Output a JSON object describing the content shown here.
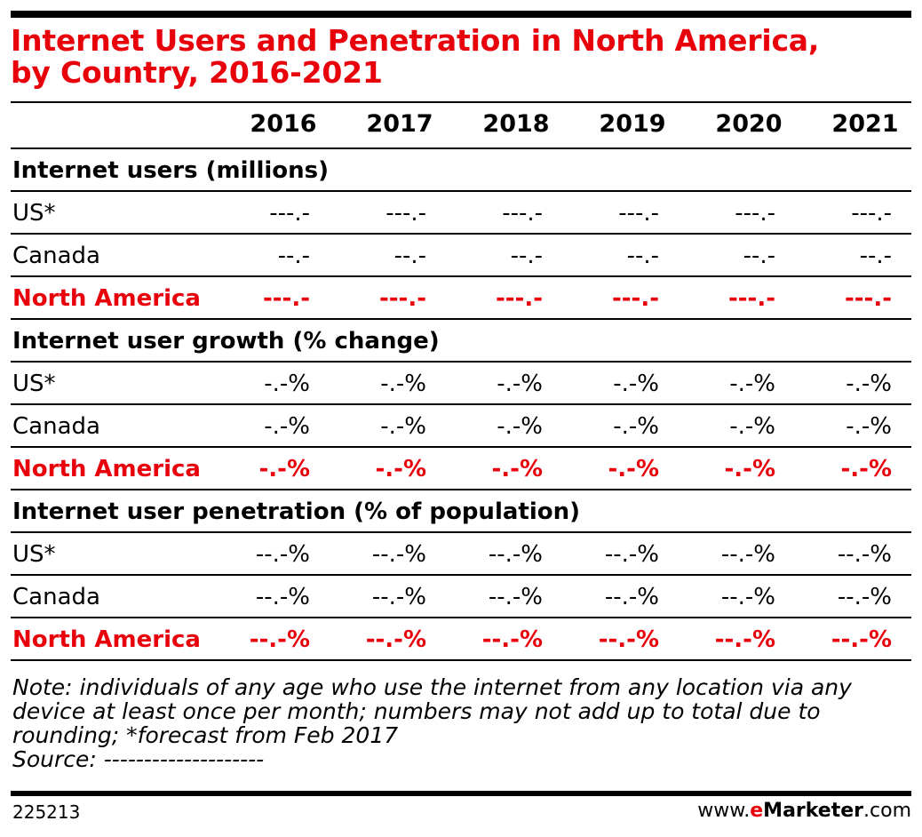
{
  "chart_data": {
    "type": "table",
    "title": "Internet Users and Penetration in North America, by Country, 2016-2021",
    "title_lines": [
      "Internet Users and Penetration in North America,",
      "by Country, 2016-2021"
    ],
    "years": [
      "2016",
      "2017",
      "2018",
      "2019",
      "2020",
      "2021"
    ],
    "sections": [
      {
        "heading": "Internet users (millions)",
        "rows": [
          {
            "label": "US*",
            "values": [
              "---.-",
              "---.-",
              "---.-",
              "---.-",
              "---.-",
              "---.-"
            ]
          },
          {
            "label": "Canada",
            "values": [
              "--.-",
              "--.-",
              "--.-",
              "--.-",
              "--.-",
              "--.-"
            ]
          },
          {
            "label": "North America",
            "values": [
              "---.-",
              "---.-",
              "---.-",
              "---.-",
              "---.-",
              "---.-"
            ]
          }
        ]
      },
      {
        "heading": "Internet user growth (% change)",
        "rows": [
          {
            "label": "US*",
            "values": [
              "-.-%",
              "-.-%",
              "-.-%",
              "-.-%",
              "-.-%",
              "-.-%"
            ]
          },
          {
            "label": "Canada",
            "values": [
              "-.-%",
              "-.-%",
              "-.-%",
              "-.-%",
              "-.-%",
              "-.-%"
            ]
          },
          {
            "label": "North America",
            "values": [
              "-.-%",
              "-.-%",
              "-.-%",
              "-.-%",
              "-.-%",
              "-.-%"
            ]
          }
        ]
      },
      {
        "heading": "Internet user penetration (% of population)",
        "rows": [
          {
            "label": "US*",
            "values": [
              "--.-%",
              "--.-%",
              "--.-%",
              "--.-%",
              "--.-%",
              "--.-%"
            ]
          },
          {
            "label": "Canada",
            "values": [
              "--.-%",
              "--.-%",
              "--.-%",
              "--.-%",
              "--.-%",
              "--.-%"
            ]
          },
          {
            "label": "North America",
            "values": [
              "--.-%",
              "--.-%",
              "--.-%",
              "--.-%",
              "--.-%",
              "--.-%"
            ]
          }
        ]
      }
    ],
    "note_lines": [
      "Note: individuals of any age who use the internet from any location via any",
      "device at least once per month; numbers may not add up to total due to",
      "rounding; *forecast from Feb 2017",
      "Source: --------------------"
    ],
    "footer": {
      "chart_id": "225213",
      "brand_prefix": "www.",
      "brand_e": "e",
      "brand_name": "Marketer",
      "brand_suffix": ".com"
    },
    "colors": {
      "accent": "#e8000b",
      "text": "#000000"
    }
  }
}
